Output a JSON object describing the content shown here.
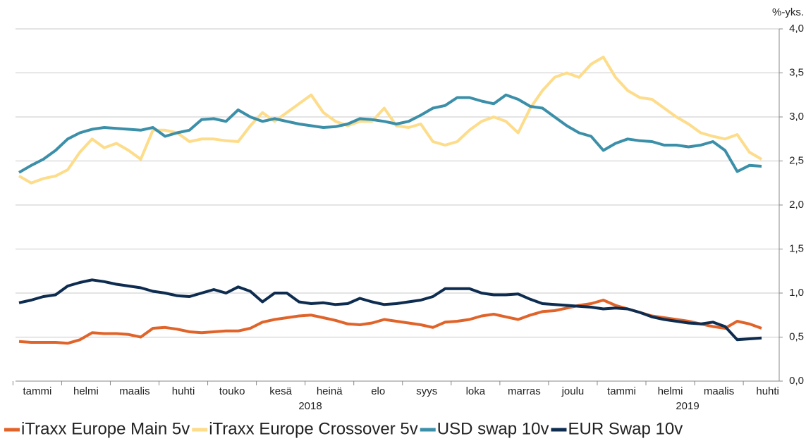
{
  "chart_data": {
    "type": "line",
    "unit_label": "%-yks.",
    "categories": [
      "tammi",
      null,
      null,
      null,
      "helmi",
      null,
      null,
      null,
      "maalis",
      null,
      null,
      null,
      "huhti",
      null,
      null,
      null,
      "touko",
      null,
      null,
      null,
      "kesä",
      null,
      null,
      null,
      "heinä",
      null,
      null,
      null,
      "elo",
      null,
      null,
      null,
      "syys",
      null,
      null,
      null,
      "loka",
      null,
      null,
      null,
      "marras",
      null,
      null,
      null,
      "joulu",
      null,
      null,
      null,
      "tammi",
      null,
      null,
      null,
      "helmi",
      null,
      null,
      null,
      "maalis",
      null,
      null,
      null,
      "huhti",
      null
    ],
    "year_labels": [
      "2018",
      "2019"
    ],
    "series": [
      {
        "name": "iTraxx Europe Main 5v",
        "color": "#e0642a",
        "values": [
          0.45,
          0.44,
          0.44,
          0.44,
          0.43,
          0.47,
          0.55,
          0.54,
          0.54,
          0.53,
          0.5,
          0.6,
          0.61,
          0.59,
          0.56,
          0.55,
          0.56,
          0.57,
          0.57,
          0.6,
          0.67,
          0.7,
          0.72,
          0.74,
          0.75,
          0.72,
          0.69,
          0.65,
          0.64,
          0.66,
          0.7,
          0.68,
          0.66,
          0.64,
          0.61,
          0.67,
          0.68,
          0.7,
          0.74,
          0.76,
          0.73,
          0.7,
          0.75,
          0.79,
          0.8,
          0.83,
          0.86,
          0.88,
          0.92,
          0.86,
          0.82,
          0.78,
          0.74,
          0.72,
          0.7,
          0.68,
          0.65,
          0.62,
          0.6,
          0.68,
          0.65,
          0.6
        ]
      },
      {
        "name": "iTraxx Europe Crossover 5v",
        "color": "#fddc8a",
        "values": [
          2.33,
          2.25,
          2.3,
          2.33,
          2.4,
          2.6,
          2.75,
          2.65,
          2.7,
          2.62,
          2.52,
          2.85,
          2.85,
          2.82,
          2.72,
          2.75,
          2.75,
          2.73,
          2.72,
          2.9,
          3.05,
          2.95,
          3.05,
          3.15,
          3.25,
          3.05,
          2.95,
          2.9,
          2.95,
          2.95,
          3.1,
          2.9,
          2.88,
          2.92,
          2.72,
          2.68,
          2.72,
          2.85,
          2.95,
          3.0,
          2.95,
          2.82,
          3.1,
          3.3,
          3.45,
          3.5,
          3.45,
          3.6,
          3.68,
          3.45,
          3.3,
          3.22,
          3.2,
          3.1,
          3.0,
          2.92,
          2.82,
          2.78,
          2.75,
          2.8,
          2.6,
          2.52
        ]
      },
      {
        "name": "USD swap 10v",
        "color": "#3b8fa8",
        "values": [
          2.37,
          2.45,
          2.52,
          2.62,
          2.75,
          2.82,
          2.86,
          2.88,
          2.87,
          2.86,
          2.85,
          2.88,
          2.78,
          2.82,
          2.85,
          2.97,
          2.98,
          2.95,
          3.08,
          3.0,
          2.95,
          2.98,
          2.95,
          2.92,
          2.9,
          2.88,
          2.89,
          2.92,
          2.98,
          2.97,
          2.95,
          2.92,
          2.95,
          3.02,
          3.1,
          3.13,
          3.22,
          3.22,
          3.18,
          3.15,
          3.25,
          3.2,
          3.12,
          3.1,
          3.0,
          2.9,
          2.82,
          2.78,
          2.62,
          2.7,
          2.75,
          2.73,
          2.72,
          2.68,
          2.68,
          2.66,
          2.68,
          2.72,
          2.62,
          2.38,
          2.45,
          2.44
        ]
      },
      {
        "name": "EUR Swap 10v",
        "color": "#0d2c4f",
        "values": [
          0.89,
          0.92,
          0.96,
          0.98,
          1.08,
          1.12,
          1.15,
          1.13,
          1.1,
          1.08,
          1.06,
          1.02,
          1.0,
          0.97,
          0.96,
          1.0,
          1.04,
          1.0,
          1.07,
          1.02,
          0.9,
          1.0,
          1.0,
          0.9,
          0.88,
          0.89,
          0.87,
          0.88,
          0.94,
          0.9,
          0.87,
          0.88,
          0.9,
          0.92,
          0.96,
          1.05,
          1.05,
          1.05,
          1.0,
          0.98,
          0.98,
          0.99,
          0.93,
          0.88,
          0.87,
          0.86,
          0.85,
          0.84,
          0.82,
          0.83,
          0.82,
          0.78,
          0.73,
          0.7,
          0.68,
          0.66,
          0.65,
          0.67,
          0.62,
          0.47,
          0.48,
          0.49
        ]
      }
    ],
    "ylim": [
      0,
      4
    ],
    "yticks": [
      {
        "value": 0,
        "label": "0,0"
      },
      {
        "value": 0.5,
        "label": "0,5"
      },
      {
        "value": 1,
        "label": "1,0"
      },
      {
        "value": 1.5,
        "label": "1,5"
      },
      {
        "value": 2,
        "label": "2,0"
      },
      {
        "value": 2.5,
        "label": "2,5"
      },
      {
        "value": 3,
        "label": "3,0"
      },
      {
        "value": 3.5,
        "label": "3,5"
      },
      {
        "value": 4,
        "label": "4,0"
      }
    ],
    "grid": true,
    "legend": "bottom"
  }
}
